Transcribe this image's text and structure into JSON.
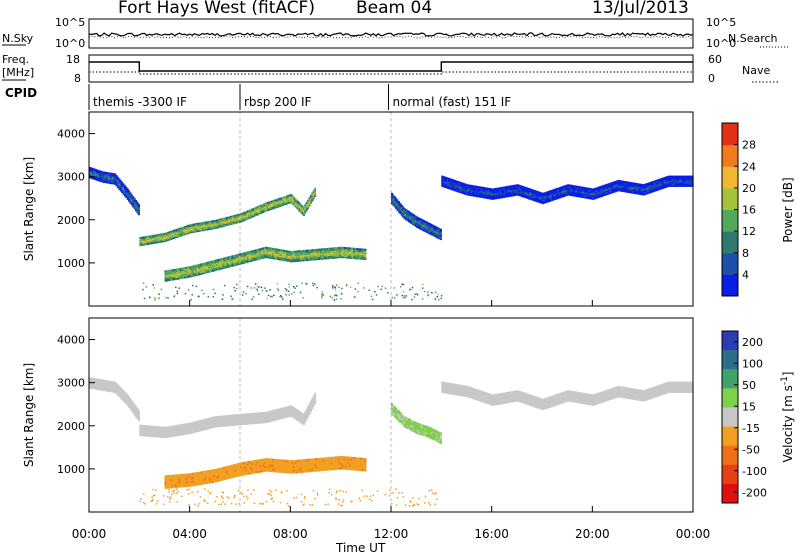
{
  "header": {
    "radar": "Fort Hays West (fitACF)",
    "beam": "Beam 04",
    "date": "13/Jul/2013"
  },
  "left_labels": {
    "nsky": "N.Sky",
    "freq": "Freq.",
    "freq_unit": "[MHz]",
    "cpid": "CPID"
  },
  "right_labels": {
    "nsearch": "N.Search",
    "nave": "Nave"
  },
  "noise_panel": {
    "ticks_left": [
      "10^5",
      "10^0"
    ],
    "ticks_right": [
      "10^5",
      "10^0"
    ]
  },
  "freq_panel": {
    "ticks_left": [
      "18",
      "8"
    ],
    "ticks_right": [
      "60",
      "0"
    ]
  },
  "cpid_segments": [
    {
      "label": "themis -3300 IF",
      "start_hour": 0,
      "end_hour": 6
    },
    {
      "label": "rbsp 200 IF",
      "start_hour": 6,
      "end_hour": 11.9
    },
    {
      "label": "normal (fast) 151 IF",
      "start_hour": 11.9,
      "end_hour": 24
    }
  ],
  "time_axis": {
    "label": "Time UT",
    "ticks": [
      "00:00",
      "04:00",
      "08:00",
      "12:00",
      "16:00",
      "20:00",
      "00:00"
    ]
  },
  "range_axis": {
    "label": "Slant Range [km]",
    "ticks": [
      "1000",
      "2000",
      "3000",
      "4000"
    ]
  },
  "power_colorbar": {
    "label": "Power [dB]",
    "ticks": [
      "4",
      "8",
      "12",
      "16",
      "20",
      "24",
      "28"
    ],
    "colors": [
      "#0a1fe6",
      "#1d50a8",
      "#2e7b6e",
      "#52a85b",
      "#a6c23c",
      "#f2b630",
      "#f07a1c",
      "#e43016"
    ]
  },
  "velocity_colorbar": {
    "label": "Velocity",
    "unit": "[m s",
    "unit_sup": "-1",
    "unit_end": "]",
    "ticks": [
      "200",
      "100",
      "50",
      "15",
      "-15",
      "-50",
      "-100",
      "-200"
    ],
    "colors": [
      "#2a3cb6",
      "#2e6d8a",
      "#42a36a",
      "#7fd04a",
      "#c8c8c8",
      "#f2a024",
      "#f07018",
      "#e84012",
      "#e01010"
    ]
  },
  "chart_data": {
    "type": "heatmap",
    "x_label": "Time UT",
    "y_label": "Slant Range [km]",
    "xlim_hours": [
      0,
      24
    ],
    "ylim_km": [
      0,
      4500
    ],
    "power_panel": {
      "colorbar_range_db": [
        0,
        30
      ],
      "bands": [
        {
          "t": [
            0.0,
            0.5,
            1.0,
            1.5,
            2.0
          ],
          "range_km": [
            3100,
            3000,
            2950,
            2600,
            2200
          ],
          "width_km": 250,
          "power_db": 9
        },
        {
          "t": [
            2.0,
            3.0,
            4.0,
            5.0,
            6.0,
            7.0,
            8.0,
            8.5,
            9.0
          ],
          "range_km": [
            1500,
            1600,
            1800,
            1900,
            2050,
            2300,
            2500,
            2200,
            2700
          ],
          "width_km": 200,
          "power_db": 18
        },
        {
          "t": [
            3.0,
            4.0,
            5.0,
            6.0,
            7.0,
            8.0,
            9.0,
            10.0,
            11.0
          ],
          "range_km": [
            700,
            800,
            950,
            1100,
            1250,
            1150,
            1200,
            1250,
            1200
          ],
          "width_km": 250,
          "power_db": 18
        },
        {
          "t": [
            12.0,
            12.5,
            13.0,
            13.5,
            14.0
          ],
          "range_km": [
            2500,
            2150,
            1950,
            1800,
            1650
          ],
          "width_km": 250,
          "power_db": 10
        },
        {
          "t": [
            14.0,
            15.0,
            16.0,
            17.0,
            18.0,
            19.0,
            20.0,
            21.0,
            22.0,
            23.0,
            24.0
          ],
          "range_km": [
            2900,
            2700,
            2600,
            2700,
            2500,
            2700,
            2600,
            2800,
            2700,
            2900,
            2900
          ],
          "width_km": 250,
          "power_db": 6
        }
      ]
    },
    "velocity_panel": {
      "colorbar_range_ms": [
        -250,
        250
      ],
      "bands": [
        {
          "t": [
            0.0,
            0.5,
            1.0,
            1.5,
            2.0
          ],
          "range_km": [
            3000,
            2950,
            2900,
            2600,
            2200
          ],
          "width_km": 250,
          "velocity_ms": 0
        },
        {
          "t": [
            2.0,
            3.0,
            4.0,
            5.0,
            6.0,
            7.0,
            8.0,
            8.5,
            9.0
          ],
          "range_km": [
            1900,
            1850,
            1950,
            2100,
            2150,
            2200,
            2350,
            2150,
            2700
          ],
          "width_km": 250,
          "velocity_ms": -10
        },
        {
          "t": [
            3.0,
            4.0,
            5.0,
            6.0,
            7.0,
            8.0,
            9.0,
            10.0,
            11.0
          ],
          "range_km": [
            700,
            750,
            850,
            1000,
            1100,
            1050,
            1100,
            1150,
            1100
          ],
          "width_km": 300,
          "velocity_ms": -80
        },
        {
          "t": [
            12.0,
            12.5,
            13.0,
            13.5,
            14.0
          ],
          "range_km": [
            2400,
            2100,
            1950,
            1850,
            1700
          ],
          "width_km": 250,
          "velocity_ms": 30
        },
        {
          "t": [
            14.0,
            15.0,
            16.0,
            17.0,
            18.0,
            19.0,
            20.0,
            21.0,
            22.0,
            23.0,
            24.0
          ],
          "range_km": [
            2900,
            2800,
            2600,
            2700,
            2500,
            2700,
            2600,
            2800,
            2700,
            2900,
            2900
          ],
          "width_km": 250,
          "velocity_ms": 0
        }
      ]
    }
  }
}
